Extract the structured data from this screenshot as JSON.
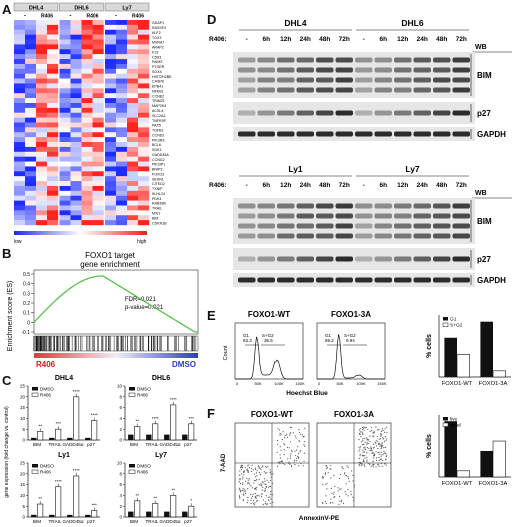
{
  "panel_letters": {
    "a": "A",
    "b": "B",
    "c": "C",
    "d": "D",
    "e": "E",
    "f": "F"
  },
  "heatmap": {
    "cell_lines": [
      "DHL4",
      "DHL6",
      "Ly7"
    ],
    "treatment_minus": "-",
    "treatment_r406": "R406",
    "genes": [
      "GDAP1",
      "RASSF4",
      "KLF2",
      "TOX3",
      "MXRA7",
      "ARAP2",
      "F13",
      "CD83",
      "FAIM3",
      "PTGER",
      "SOX4",
      "HIST2H2BE",
      "CASP8",
      "EPB41",
      "NFKB1",
      "CCNE2",
      "TRIM21",
      "MAP2K4",
      "ACSL4",
      "SLC2A3",
      "TNFRSF",
      "PAX5",
      "TGFB1",
      "CCND2",
      "PIK3R3",
      "BCL6",
      "SGK1",
      "GADD45A",
      "CCNG2",
      "PIK3IP1",
      "BNIP3",
      "FOXO3",
      "SESN1",
      "CITED2",
      "TXNIP",
      "KLHL24",
      "PDK4",
      "RAB39B",
      "TRAIL",
      "MXI1",
      "BIM",
      "CDKN1B"
    ],
    "legend_low": "low",
    "legend_high": "high"
  },
  "gsea": {
    "title_line1": "FOXO1 target",
    "title_line2": "gene enrichment",
    "fdr": "FDR=0.021",
    "pvalue": "p-value=0.021",
    "ylabel": "Enrichment score (ES)",
    "ticks": [
      "0.5",
      "0.4",
      "0.3",
      "0.2",
      "0.1",
      "0",
      "-0.1"
    ],
    "left_label": "R406",
    "right_label": "DMSO"
  },
  "expression": {
    "ylabel": "gene expression (fold change vs. control)",
    "legend_dmso": "DMSO",
    "legend_r406": "R406",
    "categories": [
      "BIM",
      "TRAIL",
      "GADD45α",
      "p27"
    ],
    "panels": [
      {
        "title": "DHL4",
        "ylim": [
          0,
          25
        ],
        "ticks": [
          "0",
          "5",
          "10",
          "15",
          "20",
          "25"
        ],
        "dmso": [
          1,
          1,
          1,
          1
        ],
        "r406": [
          4,
          5,
          20,
          9
        ],
        "stars": [
          "**",
          "***",
          "****",
          "****"
        ]
      },
      {
        "title": "DHL6",
        "ylim": [
          0,
          10
        ],
        "ticks": [
          "0",
          "2",
          "4",
          "6",
          "8",
          "10"
        ],
        "dmso": [
          1,
          1,
          1,
          1
        ],
        "r406": [
          2.5,
          3,
          6.5,
          3
        ],
        "stars": [
          "**",
          "****",
          "****",
          "***"
        ]
      },
      {
        "title": "Ly1",
        "ylim": [
          0,
          25
        ],
        "ticks": [
          "0",
          "5",
          "10",
          "15",
          "20",
          "25"
        ],
        "dmso": [
          1,
          1,
          1,
          1
        ],
        "r406": [
          6,
          14,
          19,
          3
        ],
        "stars": [
          "**",
          "****",
          "****",
          "***"
        ]
      },
      {
        "title": "Ly7",
        "ylim": [
          0,
          10
        ],
        "ticks": [
          "0",
          "2",
          "4",
          "6",
          "8",
          "10"
        ],
        "dmso": [
          1,
          1,
          1,
          1
        ],
        "r406": [
          3,
          2.5,
          4,
          2
        ],
        "stars": [
          "**",
          "**",
          "**",
          "*"
        ]
      }
    ]
  },
  "western": {
    "r406_label": "R406:",
    "wb_label": "WB",
    "timepoints": [
      "-",
      "6h",
      "12h",
      "24h",
      "48h",
      "72h"
    ],
    "top_lines": [
      "DHL4",
      "DHL6"
    ],
    "bottom_lines": [
      "Ly1",
      "Ly7"
    ],
    "proteins": [
      "BIM",
      "p27",
      "GAPDH"
    ]
  },
  "cell_cycle": {
    "conditions": [
      "FOXO1-WT",
      "FOXO1-3A"
    ],
    "wt_g1": "G1\n63.3",
    "wt_sg2": "S+G2\n36.5",
    "ca_g1": "G1\n89.2",
    "ca_sg2": "S+G2\n9.94",
    "ylabel": "Count",
    "xlabel": "Hoechst Blue",
    "xticks": [
      "0",
      "50K",
      "100K",
      "150K"
    ],
    "bar_ylabel": "% cells",
    "legend_g1": "G1",
    "legend_sg2": "S+G2",
    "chart_data": {
      "type": "bar",
      "categories": [
        "FOXO1-WT",
        "FOXO1-3A"
      ],
      "series": [
        {
          "name": "G1",
          "values": [
            63.3,
            89.2
          ]
        },
        {
          "name": "S+G2",
          "values": [
            36.5,
            9.94
          ]
        }
      ],
      "ylim": [
        0,
        100
      ]
    }
  },
  "apoptosis": {
    "conditions": [
      "FOXO1-WT",
      "FOXO1-3A"
    ],
    "ylabel": "7-AAD",
    "xlabel": "AnnexinV-PE",
    "bar_ylabel": "% cells",
    "legend_live": "live",
    "legend_dead": "dead",
    "chart_data": {
      "type": "bar",
      "categories": [
        "FOXO1-WT",
        "FOXO1-3A"
      ],
      "series": [
        {
          "name": "live",
          "values": [
            90,
            42
          ]
        },
        {
          "name": "dead",
          "values": [
            10,
            58
          ]
        }
      ],
      "ylim": [
        0,
        100
      ]
    }
  }
}
